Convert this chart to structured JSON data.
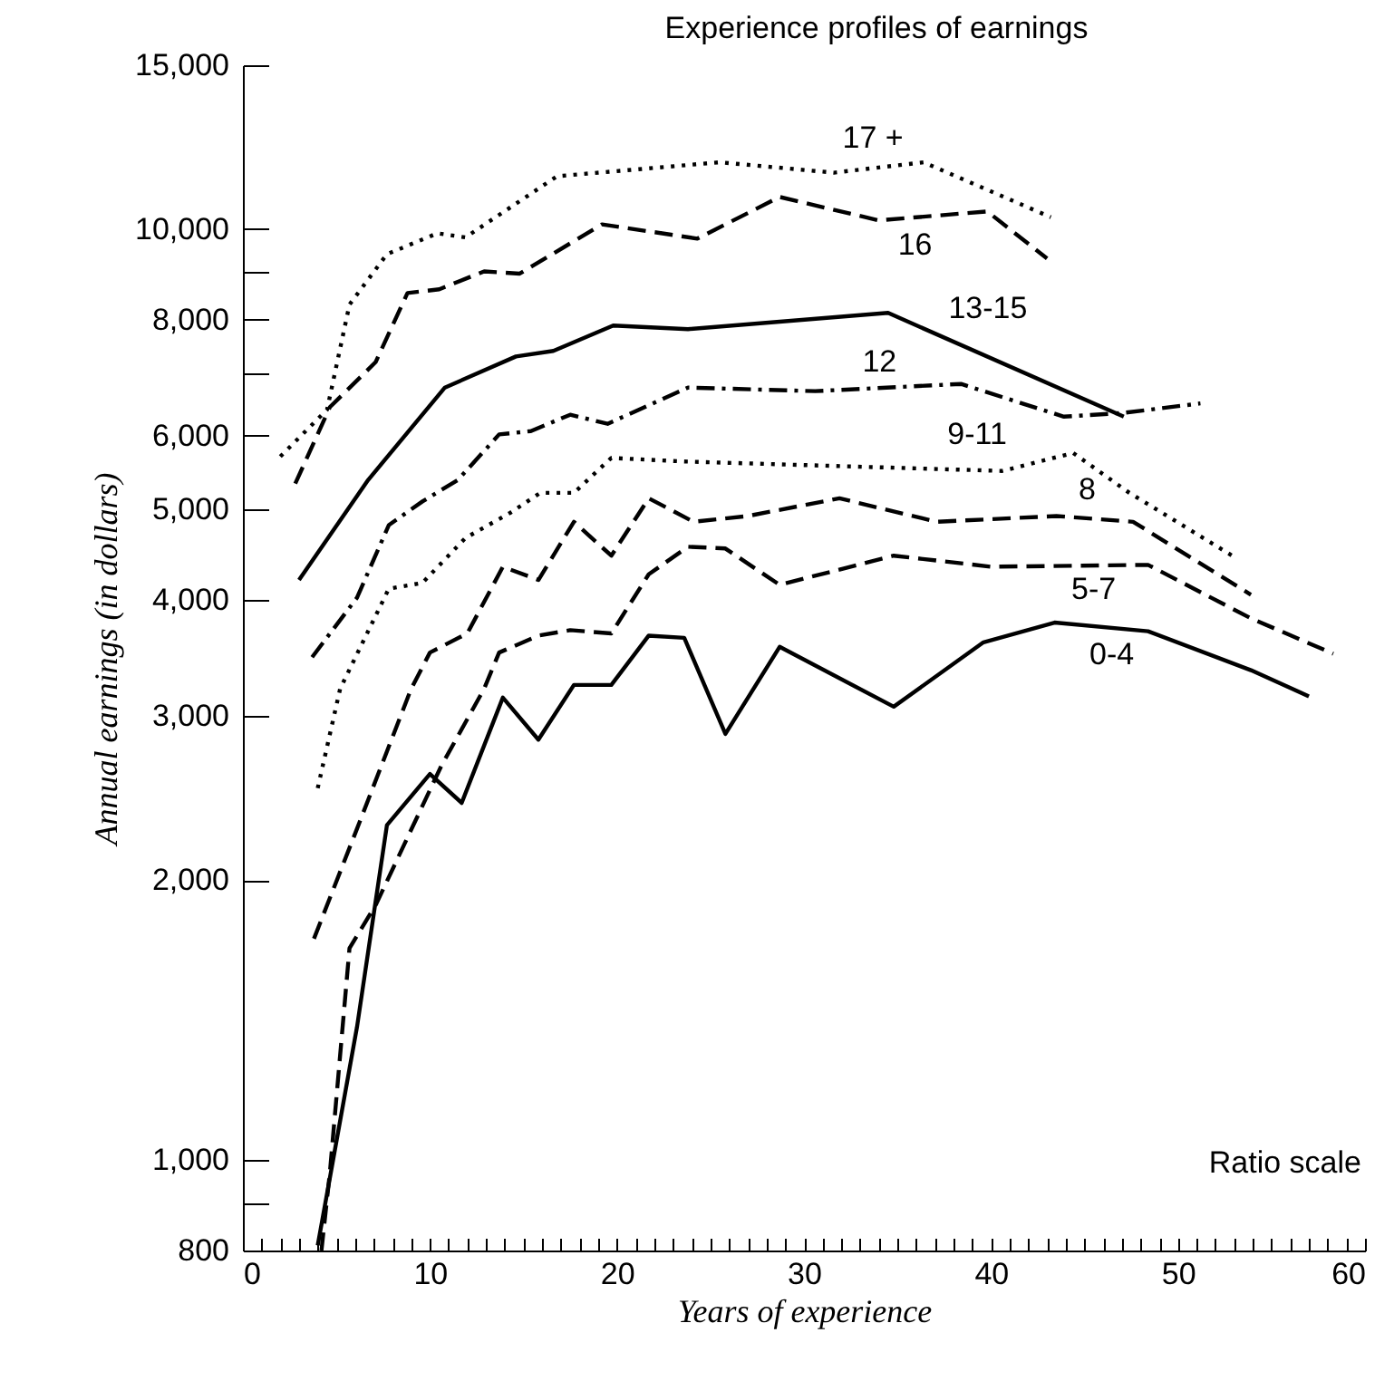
{
  "chart_data": {
    "type": "line",
    "title": "Experience profiles of earnings",
    "xlabel": "Years of experience",
    "ylabel": "Annual earnings (in dollars)",
    "log": "y",
    "legend": false,
    "grid": false,
    "xlim": [
      0,
      60
    ],
    "ylim": [
      800,
      15000
    ],
    "xticks": [
      0,
      {
        "value": 1,
        "label": null
      },
      {
        "value": 2,
        "label": null
      },
      {
        "value": 3,
        "label": null
      },
      {
        "value": 4,
        "label": null
      },
      {
        "value": 5,
        "label": null
      },
      {
        "value": 6,
        "label": null
      },
      {
        "value": 7,
        "label": null
      },
      {
        "value": 8,
        "label": null
      },
      {
        "value": 9,
        "label": null
      },
      10,
      {
        "value": 11,
        "label": null
      },
      {
        "value": 12,
        "label": null
      },
      {
        "value": 13,
        "label": null
      },
      {
        "value": 14,
        "label": null
      },
      {
        "value": 15,
        "label": null
      },
      {
        "value": 16,
        "label": null
      },
      {
        "value": 17,
        "label": null
      },
      {
        "value": 18,
        "label": null
      },
      {
        "value": 19,
        "label": null
      },
      20,
      {
        "value": 21,
        "label": null
      },
      {
        "value": 22,
        "label": null
      },
      {
        "value": 23,
        "label": null
      },
      {
        "value": 24,
        "label": null
      },
      {
        "value": 25,
        "label": null
      },
      {
        "value": 26,
        "label": null
      },
      {
        "value": 27,
        "label": null
      },
      {
        "value": 28,
        "label": null
      },
      {
        "value": 29,
        "label": null
      },
      30,
      {
        "value": 31,
        "label": null
      },
      {
        "value": 32,
        "label": null
      },
      {
        "value": 33,
        "label": null
      },
      {
        "value": 34,
        "label": null
      },
      {
        "value": 35,
        "label": null
      },
      {
        "value": 36,
        "label": null
      },
      {
        "value": 37,
        "label": null
      },
      {
        "value": 38,
        "label": null
      },
      {
        "value": 39,
        "label": null
      },
      40,
      {
        "value": 41,
        "label": null
      },
      {
        "value": 42,
        "label": null
      },
      {
        "value": 43,
        "label": null
      },
      {
        "value": 44,
        "label": null
      },
      {
        "value": 45,
        "label": null
      },
      {
        "value": 46,
        "label": null
      },
      {
        "value": 47,
        "label": null
      },
      {
        "value": 48,
        "label": null
      },
      {
        "value": 49,
        "label": null
      },
      50,
      {
        "value": 51,
        "label": null
      },
      {
        "value": 52,
        "label": null
      },
      {
        "value": 53,
        "label": null
      },
      {
        "value": 54,
        "label": null
      },
      {
        "value": 55,
        "label": null
      },
      {
        "value": 56,
        "label": null
      },
      {
        "value": 57,
        "label": null
      },
      {
        "value": 58,
        "label": null
      },
      {
        "value": 59,
        "label": null
      },
      60
    ],
    "yticks": [
      800,
      {
        "value": 900,
        "label": null
      },
      {
        "value": 1000,
        "label": "1,000"
      },
      {
        "value": 2000,
        "label": "2,000"
      },
      {
        "value": 3000,
        "label": "3,000"
      },
      {
        "value": 4000,
        "label": "4,000"
      },
      {
        "value": 5000,
        "label": "5,000"
      },
      {
        "value": 6000,
        "label": "6,000"
      },
      {
        "value": 7000,
        "label": null
      },
      {
        "value": 8000,
        "label": "8,000"
      },
      {
        "value": 9000,
        "label": null
      },
      {
        "value": 10000,
        "label": "10,000"
      },
      {
        "value": 15000,
        "label": "15,000"
      }
    ],
    "annotations": [
      "Ratio scale"
    ],
    "series": [
      {
        "name": "17 +",
        "color": "#000000",
        "line_style": "dotted",
        "x": [
          2,
          4.5,
          5.7,
          7.7,
          10.4,
          11.9,
          16.8,
          25.5,
          31.6,
          36.4,
          43.2
        ],
        "values": [
          5700,
          6400,
          8300,
          9400,
          9900,
          9800,
          11400,
          11800,
          11500,
          11800,
          10300
        ]
      },
      {
        "name": "16",
        "color": "#000000",
        "line_style": "dashed",
        "x": [
          2.8,
          4.65,
          7.1,
          8.8,
          10.5,
          12.9,
          14.8,
          19.2,
          24.3,
          28.7,
          34,
          39.8,
          43
        ],
        "values": [
          5330,
          6440,
          7200,
          8540,
          8620,
          9010,
          8960,
          10120,
          9770,
          10830,
          10220,
          10450,
          9300
        ]
      },
      {
        "name": "13-15",
        "color": "#000000",
        "line_style": "solid",
        "x": [
          3,
          6.7,
          10.8,
          14.6,
          16.6,
          19.8,
          23.8,
          34.5,
          47.1
        ],
        "values": [
          4200,
          5380,
          6760,
          7300,
          7400,
          7880,
          7810,
          8130,
          6290
        ]
      },
      {
        "name": "12",
        "color": "#000000",
        "line_style": "dashdot",
        "x": [
          3.7,
          6.1,
          7.8,
          9.6,
          11.5,
          13.7,
          15.4,
          17.5,
          19.5,
          23.8,
          30.6,
          38.4,
          43.9,
          47.1,
          51.2
        ],
        "values": [
          3470,
          4020,
          4810,
          5100,
          5380,
          6020,
          6070,
          6320,
          6180,
          6760,
          6700,
          6820,
          6290,
          6350,
          6500
        ]
      },
      {
        "name": "9-11",
        "color": "#000000",
        "line_style": "dotted",
        "x": [
          4,
          5.2,
          7.8,
          9.6,
          11.9,
          14.3,
          15.9,
          17.7,
          19.7,
          23.6,
          40.6,
          44.4,
          47.4,
          52.9
        ],
        "values": [
          2510,
          3210,
          4110,
          4170,
          4660,
          4960,
          5210,
          5210,
          5680,
          5630,
          5500,
          5750,
          5210,
          4460
        ]
      },
      {
        "name": "8",
        "color": "#000000",
        "line_style": "dashed",
        "x": [
          3.8,
          6.1,
          9,
          10,
          12,
          13.9,
          15.8,
          17.7,
          19.7,
          21.7,
          24.1,
          27,
          31.9,
          37.1,
          43.5,
          47.6,
          53.9
        ],
        "values": [
          1730,
          2270,
          3210,
          3510,
          3680,
          4340,
          4200,
          4850,
          4460,
          5140,
          4850,
          4920,
          5140,
          4850,
          4920,
          4850,
          4050
        ]
      },
      {
        "name": "5-7",
        "color": "#000000",
        "line_style": "dashed",
        "x": [
          4.2,
          4.65,
          5.7,
          7.1,
          10.6,
          12.9,
          13.7,
          15.8,
          17.5,
          19.7,
          21.7,
          23.8,
          25.8,
          28.7,
          34.8,
          40,
          48.4,
          53.9,
          58.3
        ],
        "values": [
          800,
          970,
          1690,
          1880,
          2650,
          3210,
          3510,
          3660,
          3710,
          3680,
          4260,
          4560,
          4540,
          4150,
          4460,
          4340,
          4360,
          3820,
          3500
        ]
      },
      {
        "name": "0-4",
        "color": "#000000",
        "line_style": "solid",
        "x": [
          4,
          6.1,
          7.7,
          10,
          11.7,
          13.9,
          15.8,
          17.7,
          19.7,
          21.7,
          23.6,
          25.8,
          28.7,
          34.8,
          39.6,
          43.4,
          48.4,
          53.9,
          57
        ],
        "values": [
          810,
          1390,
          2290,
          2600,
          2420,
          3140,
          2830,
          3240,
          3240,
          3660,
          3640,
          2870,
          3560,
          3070,
          3600,
          3780,
          3700,
          3360,
          3150
        ]
      }
    ]
  }
}
